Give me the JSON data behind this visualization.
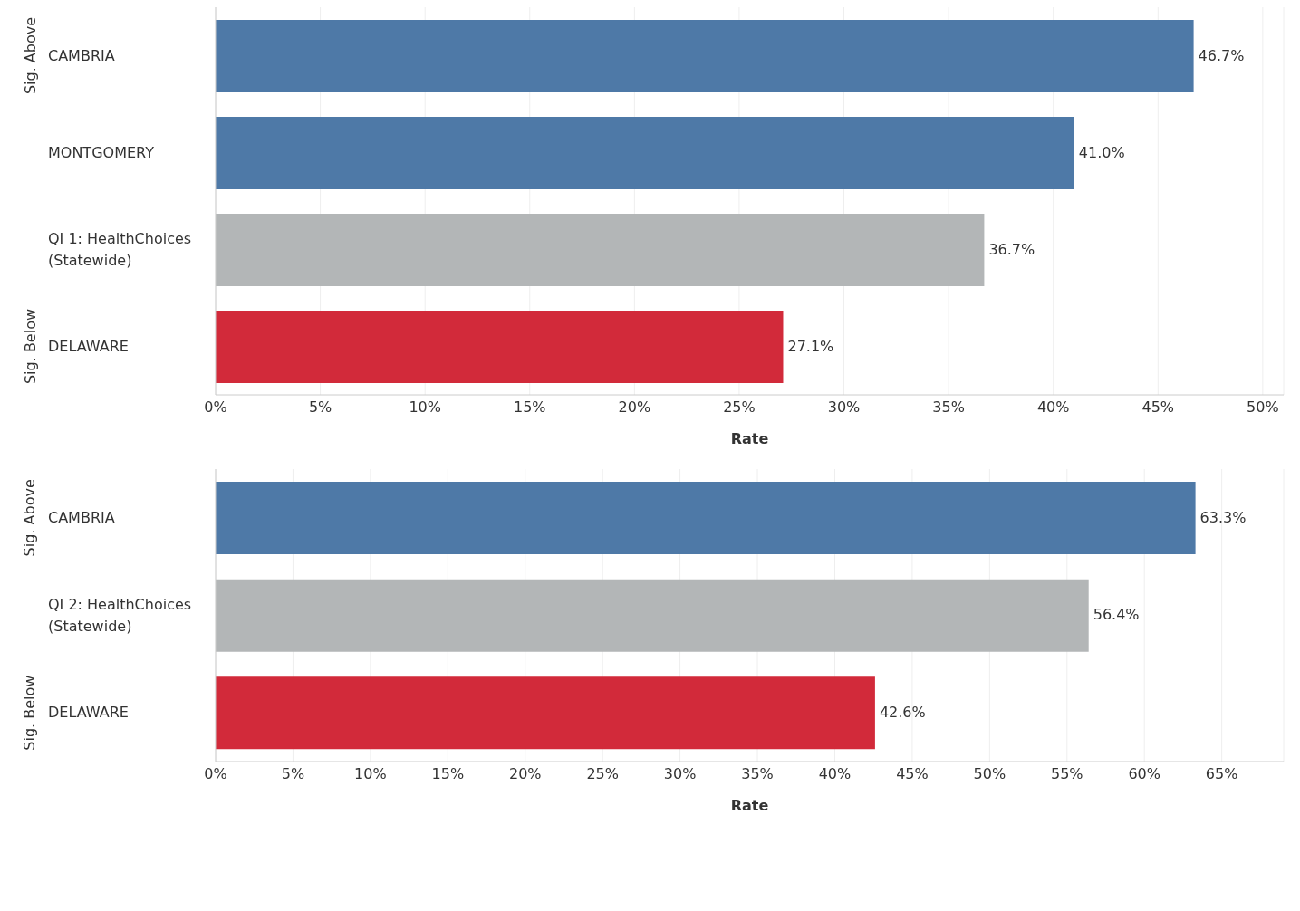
{
  "chart_data": [
    {
      "type": "bar",
      "orientation": "horizontal",
      "categories": [
        "CAMBRIA",
        "MONTGOMERY",
        "QI 1: HealthChoices (Statewide)",
        "DELAWARE"
      ],
      "values": [
        46.7,
        41.0,
        36.7,
        27.1
      ],
      "colors": [
        "#4e79a7",
        "#4e79a7",
        "#b3b6b7",
        "#d22a3a"
      ],
      "value_labels": [
        "46.7%",
        "41.0%",
        "36.7%",
        "27.1%"
      ],
      "xlabel": "Rate",
      "xlim": [
        0,
        51
      ],
      "xticks": [
        {
          "value": 0,
          "label": "0%"
        },
        {
          "value": 5,
          "label": "5%"
        },
        {
          "value": 10,
          "label": "10%"
        },
        {
          "value": 15,
          "label": "15%"
        },
        {
          "value": 20,
          "label": "20%"
        },
        {
          "value": 25,
          "label": "25%"
        },
        {
          "value": 30,
          "label": "30%"
        },
        {
          "value": 35,
          "label": "35%"
        },
        {
          "value": 40,
          "label": "40%"
        },
        {
          "value": 45,
          "label": "45%"
        },
        {
          "value": 50,
          "label": "50%"
        }
      ],
      "grid": "x",
      "legend": false,
      "annotations": [
        "Sig. Above",
        "Sig. Below"
      ]
    },
    {
      "type": "bar",
      "orientation": "horizontal",
      "categories": [
        "CAMBRIA",
        "QI 2: HealthChoices (Statewide)",
        "DELAWARE"
      ],
      "values": [
        63.3,
        56.4,
        42.6
      ],
      "colors": [
        "#4e79a7",
        "#b3b6b7",
        "#d22a3a"
      ],
      "value_labels": [
        "63.3%",
        "56.4%",
        "42.6%"
      ],
      "xlabel": "Rate",
      "xlim": [
        0,
        69
      ],
      "xticks": [
        {
          "value": 0,
          "label": "0%"
        },
        {
          "value": 5,
          "label": "5%"
        },
        {
          "value": 10,
          "label": "10%"
        },
        {
          "value": 15,
          "label": "15%"
        },
        {
          "value": 20,
          "label": "20%"
        },
        {
          "value": 25,
          "label": "25%"
        },
        {
          "value": 30,
          "label": "30%"
        },
        {
          "value": 35,
          "label": "35%"
        },
        {
          "value": 40,
          "label": "40%"
        },
        {
          "value": 45,
          "label": "45%"
        },
        {
          "value": 50,
          "label": "50%"
        },
        {
          "value": 55,
          "label": "55%"
        },
        {
          "value": 60,
          "label": "60%"
        },
        {
          "value": 65,
          "label": "65%"
        }
      ],
      "grid": "x",
      "legend": false,
      "annotations": [
        "Sig. Above",
        "Sig. Below"
      ]
    }
  ]
}
